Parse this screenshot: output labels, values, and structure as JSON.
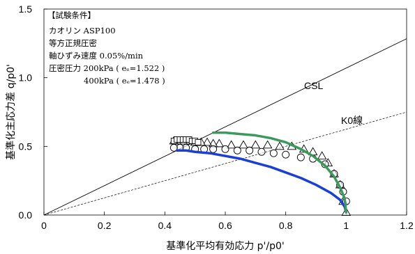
{
  "chart_data": {
    "type": "scatter",
    "title": "",
    "xlabel": "基準化平均有効応力 p'/p0'",
    "ylabel": "基準化主応力差 q/p0'",
    "xlim": [
      0,
      1.2
    ],
    "ylim": [
      0,
      1.5
    ],
    "x_ticks": [
      "0",
      "0.2",
      "0.4",
      "0.6",
      "0.8",
      "1",
      "1.2"
    ],
    "y_ticks": [
      "0.0",
      "0.5",
      "1.0",
      "1.5"
    ],
    "grid": false,
    "reference_lines": [
      {
        "name": "CSL",
        "slope": 1.07,
        "style": "solid",
        "color": "#000000"
      },
      {
        "name": "K0線",
        "slope": 0.625,
        "style": "dashed",
        "color": "#000000"
      }
    ],
    "annotation_box": [
      "【試験条件】",
      "カオリン ASP100",
      "等方正規圧密",
      "軸ひずみ速度 0.05%/min",
      "圧密圧力 200kPa ( eₑ=1.522 )",
      "400kPa ( eₑ=1.478 )"
    ],
    "series": [
      {
        "marker": "triangle",
        "color": "#000000",
        "x": [
          1.0,
          0.99,
          0.98,
          0.96,
          0.94,
          0.92,
          0.89,
          0.86,
          0.82,
          0.78,
          0.74,
          0.7,
          0.66,
          0.62,
          0.58,
          0.56,
          0.54,
          0.52,
          0.5,
          0.48,
          0.46,
          0.44,
          0.43
        ],
        "y": [
          0.02,
          0.1,
          0.22,
          0.3,
          0.38,
          0.43,
          0.46,
          0.48,
          0.5,
          0.5,
          0.51,
          0.51,
          0.51,
          0.51,
          0.52,
          0.52,
          0.53,
          0.53,
          0.53,
          0.54,
          0.54,
          0.54,
          0.54
        ]
      },
      {
        "marker": "circle",
        "color": "#000000",
        "x": [
          1.0,
          0.99,
          0.98,
          0.96,
          0.93,
          0.89,
          0.85,
          0.8,
          0.76,
          0.72,
          0.68,
          0.64,
          0.6,
          0.56,
          0.53,
          0.5,
          0.47,
          0.45,
          0.43
        ],
        "y": [
          0.1,
          0.17,
          0.22,
          0.3,
          0.37,
          0.41,
          0.42,
          0.44,
          0.45,
          0.46,
          0.47,
          0.47,
          0.48,
          0.48,
          0.48,
          0.48,
          0.49,
          0.49,
          0.49
        ]
      },
      {
        "marker": "square",
        "color": "#000000",
        "x": [
          0.43,
          0.44,
          0.45,
          0.46,
          0.47,
          0.48,
          0.49,
          0.5,
          0.51
        ],
        "y": [
          0.54,
          0.55,
          0.55,
          0.55,
          0.55,
          0.55,
          0.54,
          0.54,
          0.53
        ]
      },
      {
        "marker": "line",
        "color": "#1a3fd6",
        "x": [
          1.0,
          0.995,
          0.98,
          0.95,
          0.9,
          0.85,
          0.8,
          0.75,
          0.7,
          0.65,
          0.6,
          0.55,
          0.5,
          0.47,
          0.45,
          0.44
        ],
        "y": [
          0.02,
          0.06,
          0.11,
          0.16,
          0.22,
          0.27,
          0.31,
          0.35,
          0.38,
          0.41,
          0.43,
          0.45,
          0.46,
          0.47,
          0.47,
          0.47
        ]
      },
      {
        "marker": "line",
        "color": "#3a9a5b",
        "x": [
          1.0,
          0.995,
          0.98,
          0.96,
          0.93,
          0.89,
          0.85,
          0.8,
          0.75,
          0.7,
          0.65,
          0.6,
          0.56
        ],
        "y": [
          0.02,
          0.12,
          0.2,
          0.28,
          0.36,
          0.43,
          0.48,
          0.53,
          0.56,
          0.58,
          0.59,
          0.6,
          0.6
        ]
      }
    ]
  }
}
